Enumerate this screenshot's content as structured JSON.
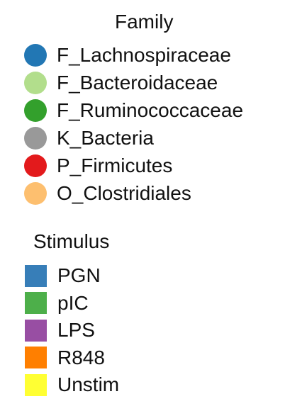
{
  "chart_data": {
    "type": "legend",
    "legends": [
      {
        "title": "Family",
        "shape": "circle",
        "entries": [
          {
            "label": "F_Lachnospiraceae",
            "color": "#2277b4"
          },
          {
            "label": "F_Bacteroidaceae",
            "color": "#b2de8c"
          },
          {
            "label": "F_Ruminococcaceae",
            "color": "#33a02c"
          },
          {
            "label": "K_Bacteria",
            "color": "#999999"
          },
          {
            "label": "P_Firmicutes",
            "color": "#e31a1c"
          },
          {
            "label": "O_Clostridiales",
            "color": "#fdbf6f"
          }
        ]
      },
      {
        "title": "Stimulus",
        "shape": "square",
        "entries": [
          {
            "label": "PGN",
            "color": "#377eb8"
          },
          {
            "label": "pIC",
            "color": "#4daf4a"
          },
          {
            "label": "LPS",
            "color": "#984ea3"
          },
          {
            "label": "R848",
            "color": "#ff7f00"
          },
          {
            "label": "Unstim",
            "color": "#ffff33"
          }
        ]
      }
    ]
  }
}
